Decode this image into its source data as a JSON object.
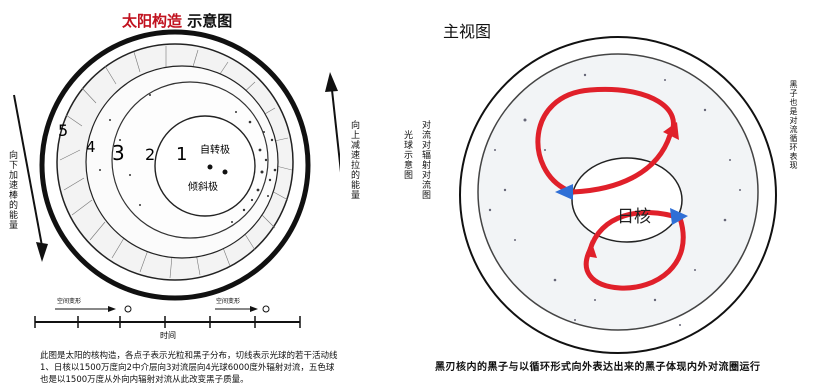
{
  "left": {
    "title_red": "太阳构造",
    "title_black": "示意图",
    "ring_labels": [
      "5",
      "4",
      "3",
      "2",
      "1"
    ],
    "pole_label_rot": "自转极",
    "pole_label_tilt": "倾斜极",
    "left_vertical": "向下加速棒的能量",
    "right_vertical": "向上减速拉的能量",
    "timeline": {
      "label": "时间",
      "small_left": "空间变形",
      "small_right": "空间变形"
    },
    "caption": "此图是太阳的核构造，各点子表示光粒和黑子分布，切线表示光球的若干活动线1、日核以1500万度向2中介层向3对流层向4光球6000度外辐射对流，五色球也是以1500万度从外向内辐射对流从此改变黑子质量。"
  },
  "right": {
    "title": "主视图",
    "core_label": "日核",
    "vertical_left_1": "对流对辐射对流图",
    "vertical_left_2": "光球示意图",
    "vertical_right": "黑子也是对流循环表现",
    "bottom_note": "黑刃核内的黑子与以循环形式向外表达出来的黑子体现内外对流圈运行"
  },
  "colors": {
    "accent_red": "#c1121f",
    "arrow_red": "#e0202a",
    "arrow_blue": "#2f6fd6"
  }
}
